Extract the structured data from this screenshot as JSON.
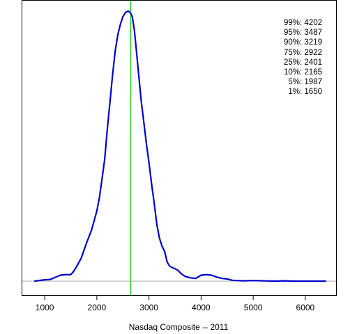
{
  "chart_data": {
    "type": "line",
    "title": "",
    "xlabel": "Nasdaq Composite -- 2011",
    "ylabel": "",
    "xlim": [
      570,
      6590
    ],
    "ylim": [
      0,
      1.05
    ],
    "x_ticks": [
      "1000",
      "2000",
      "3000",
      "4000",
      "5000",
      "6000"
    ],
    "grid": false,
    "vertical_line": {
      "x": 2652,
      "color": "#00cc00"
    },
    "baseline_color": "#aaaaaa",
    "series": [
      {
        "color": "#0000cc",
        "x": [
          800,
          1000,
          1100,
          1200,
          1300,
          1400,
          1500,
          1550,
          1600,
          1700,
          1800,
          1900,
          2000,
          2050,
          2100,
          2150,
          2200,
          2250,
          2300,
          2350,
          2400,
          2450,
          2500,
          2550,
          2600,
          2640,
          2680,
          2720,
          2750,
          2800,
          2850,
          2900,
          2950,
          3000,
          3050,
          3100,
          3150,
          3200,
          3250,
          3300,
          3350,
          3400,
          3450,
          3500,
          3550,
          3600,
          3650,
          3700,
          3800,
          3900,
          4000,
          4100,
          4200,
          4300,
          4400,
          4500,
          4600,
          4800,
          5000,
          5200,
          5400,
          5600,
          5800,
          6000,
          6200,
          6400
        ],
        "values": [
          0.0,
          0.005,
          0.006,
          0.014,
          0.022,
          0.024,
          0.024,
          0.035,
          0.05,
          0.085,
          0.14,
          0.19,
          0.26,
          0.31,
          0.38,
          0.45,
          0.56,
          0.66,
          0.76,
          0.85,
          0.91,
          0.95,
          0.98,
          0.995,
          1.0,
          0.995,
          0.98,
          0.93,
          0.87,
          0.77,
          0.67,
          0.59,
          0.51,
          0.44,
          0.36,
          0.29,
          0.21,
          0.16,
          0.13,
          0.11,
          0.07,
          0.055,
          0.05,
          0.046,
          0.041,
          0.031,
          0.023,
          0.017,
          0.012,
          0.01,
          0.022,
          0.024,
          0.022,
          0.015,
          0.01,
          0.008,
          0.003,
          0.001,
          0.002,
          0.001,
          0.0,
          0.001,
          0.0,
          0.0,
          0.0,
          0.0
        ]
      }
    ],
    "quantiles": [
      {
        "label": "99%: 4202"
      },
      {
        "label": "95%: 3487"
      },
      {
        "label": "90%: 3219"
      },
      {
        "label": "75%: 2922"
      },
      {
        "label": "25%: 2401"
      },
      {
        "label": "10%: 2165"
      },
      {
        "label": "5%: 1987"
      },
      {
        "label": "1%: 1650"
      }
    ]
  }
}
